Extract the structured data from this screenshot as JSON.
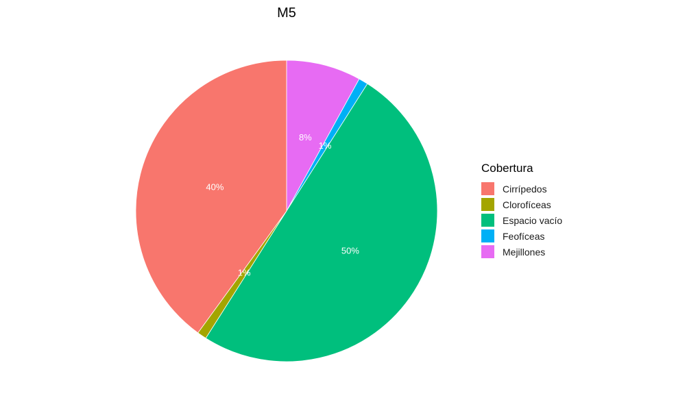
{
  "chart_data": {
    "type": "pie",
    "title": "M5",
    "legend_title": "Cobertura",
    "legend_position": "right",
    "grid": false,
    "slices": [
      {
        "name": "Cirrípedos",
        "value": 40,
        "label": "40%",
        "color": "#F8766D"
      },
      {
        "name": "Clorofíceas",
        "value": 1,
        "label": "1%",
        "color": "#A3A500"
      },
      {
        "name": "Espacio vacío",
        "value": 50,
        "label": "50%",
        "color": "#00BF7D"
      },
      {
        "name": "Feofíceas",
        "value": 1,
        "label": "1%",
        "color": "#00B0F6"
      },
      {
        "name": "Mejillones",
        "value": 8,
        "label": "8%",
        "color": "#E76BF3"
      }
    ],
    "drawing_order": [
      4,
      3,
      2,
      1,
      0
    ]
  }
}
